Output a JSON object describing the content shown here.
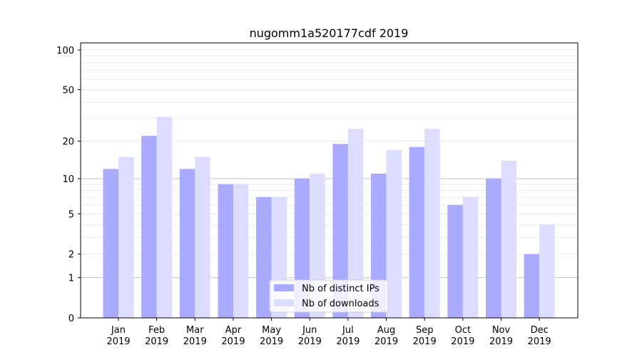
{
  "chart_data": {
    "type": "bar",
    "title": "nugomm1a520177cdf 2019",
    "xlabel": "",
    "ylabel": "",
    "yscale": "log(1+y)",
    "ylim": [
      0,
      116
    ],
    "yticks": [
      0,
      1,
      2,
      5,
      10,
      20,
      50,
      100
    ],
    "grid": true,
    "legend_position": "bottom-center",
    "categories": [
      "Jan\n2019",
      "Feb\n2019",
      "Mar\n2019",
      "Apr\n2019",
      "May\n2019",
      "Jun\n2019",
      "Jul\n2019",
      "Aug\n2019",
      "Sep\n2019",
      "Oct\n2019",
      "Nov\n2019",
      "Dec\n2019"
    ],
    "series": [
      {
        "name": "Nb of distinct IPs",
        "color": "#aaaaff",
        "values": [
          12,
          22,
          12,
          9,
          7,
          10,
          19,
          11,
          18,
          6,
          10,
          2
        ]
      },
      {
        "name": "Nb of downloads",
        "color": "#ddddff",
        "values": [
          15,
          31,
          15,
          9,
          7,
          11,
          25,
          17,
          25,
          7,
          14,
          4
        ]
      }
    ]
  }
}
